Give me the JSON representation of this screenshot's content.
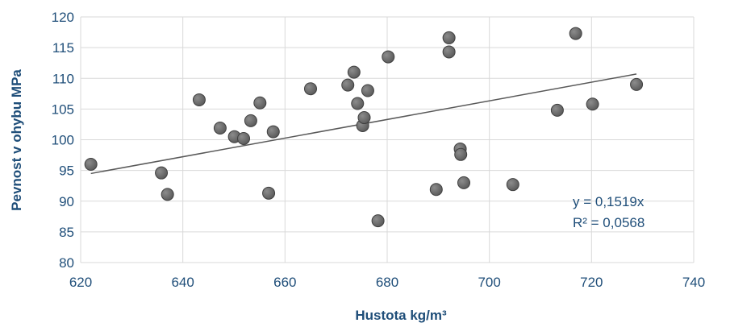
{
  "chart_data": {
    "type": "scatter",
    "title": "",
    "xlabel": "Hustota kg/m³",
    "ylabel": "Pevnost v ohybu MPa",
    "xlim": [
      620,
      740
    ],
    "ylim": [
      80,
      120
    ],
    "x_ticks": [
      "620",
      "640",
      "660",
      "680",
      "700",
      "720",
      "740"
    ],
    "y_ticks": [
      "80",
      "85",
      "90",
      "95",
      "100",
      "105",
      "110",
      "115",
      "120"
    ],
    "grid": true,
    "legend": "none",
    "points": [
      {
        "x": 622.0,
        "y": 96.0
      },
      {
        "x": 635.8,
        "y": 94.6
      },
      {
        "x": 637.0,
        "y": 91.1
      },
      {
        "x": 643.2,
        "y": 106.5
      },
      {
        "x": 647.3,
        "y": 101.9
      },
      {
        "x": 650.1,
        "y": 100.5
      },
      {
        "x": 651.9,
        "y": 100.2
      },
      {
        "x": 653.3,
        "y": 103.1
      },
      {
        "x": 655.1,
        "y": 106.0
      },
      {
        "x": 656.8,
        "y": 91.3
      },
      {
        "x": 657.7,
        "y": 101.3
      },
      {
        "x": 665.0,
        "y": 108.3
      },
      {
        "x": 672.3,
        "y": 108.9
      },
      {
        "x": 673.5,
        "y": 111.0
      },
      {
        "x": 674.2,
        "y": 105.9
      },
      {
        "x": 675.2,
        "y": 102.3
      },
      {
        "x": 675.5,
        "y": 103.6
      },
      {
        "x": 676.2,
        "y": 108.0
      },
      {
        "x": 678.2,
        "y": 86.8
      },
      {
        "x": 680.2,
        "y": 113.5
      },
      {
        "x": 689.6,
        "y": 91.9
      },
      {
        "x": 692.1,
        "y": 116.6
      },
      {
        "x": 692.1,
        "y": 114.3
      },
      {
        "x": 694.3,
        "y": 98.5
      },
      {
        "x": 694.4,
        "y": 97.6
      },
      {
        "x": 695.0,
        "y": 93.0
      },
      {
        "x": 704.6,
        "y": 92.7
      },
      {
        "x": 713.3,
        "y": 104.8
      },
      {
        "x": 716.9,
        "y": 117.3
      },
      {
        "x": 720.2,
        "y": 105.8
      },
      {
        "x": 728.8,
        "y": 109.0
      }
    ],
    "trendline": {
      "x_start": 622,
      "y_start": 94.5,
      "x_end": 728.8,
      "y_end": 110.7
    },
    "annotations": [
      "y = 0,1519x",
      "R² = 0,0568"
    ],
    "colors": {
      "point": "#595959",
      "point_edge": "#404040",
      "grid": "#d9d9d9",
      "trendline": "#595959",
      "axis_title": "#1f4e79",
      "tick_text": "#1f4e79"
    }
  }
}
